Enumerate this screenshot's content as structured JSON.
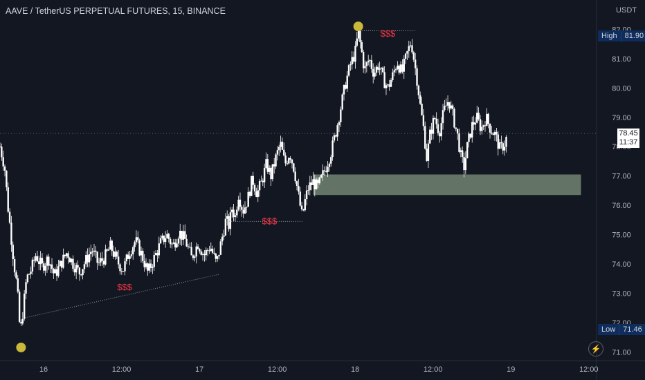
{
  "header": {
    "title": "AAVE / TetherUS PERPETUAL FUTURES, 15, BINANCE",
    "currency": "USDT"
  },
  "price_axis": {
    "high_label": "High",
    "high_value": "81.90",
    "low_label": "Low",
    "low_value": "71.46",
    "current_price": "78.45",
    "countdown": "11:37"
  },
  "annotations": {
    "liquidity_label": "$$$"
  },
  "icons": {
    "bolt": "lightning-icon"
  },
  "colors": {
    "background": "#131722",
    "candle": "#ffffff",
    "marker": "#c9b83a",
    "liquidity_text": "#f23645",
    "zone": "#8fa58c"
  },
  "chart_data": {
    "type": "candlestick",
    "interval": "15",
    "y_ticks": [
      "82.00",
      "81.00",
      "80.00",
      "79.00",
      "78.00",
      "77.00",
      "76.00",
      "75.00",
      "74.00",
      "73.00",
      "72.00",
      "71.00"
    ],
    "y_tick_values": [
      82,
      81,
      80,
      79,
      78,
      77,
      76,
      75,
      74,
      73,
      72,
      71
    ],
    "ylim": [
      70.7,
      83.0
    ],
    "x_ticks": [
      "16",
      "12:00",
      "17",
      "12:00",
      "18",
      "12:00",
      "19",
      "12:00"
    ],
    "x_tick_times": [
      16.0,
      16.5,
      17.0,
      17.5,
      18.0,
      18.5,
      19.0,
      19.5
    ],
    "xlim": [
      15.72,
      19.55
    ],
    "price_path": [
      [
        15.72,
        78.0
      ],
      [
        15.75,
        77.3
      ],
      [
        15.77,
        76.0
      ],
      [
        15.79,
        75.0
      ],
      [
        15.81,
        74.0
      ],
      [
        15.83,
        73.2
      ],
      [
        15.85,
        71.6
      ],
      [
        15.87,
        72.5
      ],
      [
        15.89,
        73.5
      ],
      [
        15.92,
        73.8
      ],
      [
        15.95,
        74.3
      ],
      [
        15.99,
        73.9
      ],
      [
        16.03,
        74.2
      ],
      [
        16.07,
        73.6
      ],
      [
        16.11,
        74.0
      ],
      [
        16.15,
        74.4
      ],
      [
        16.19,
        74.0
      ],
      [
        16.23,
        73.7
      ],
      [
        16.27,
        74.1
      ],
      [
        16.31,
        74.5
      ],
      [
        16.35,
        74.0
      ],
      [
        16.39,
        74.2
      ],
      [
        16.43,
        74.6
      ],
      [
        16.47,
        74.1
      ],
      [
        16.51,
        73.8
      ],
      [
        16.55,
        74.4
      ],
      [
        16.59,
        74.8
      ],
      [
        16.63,
        74.3
      ],
      [
        16.67,
        73.7
      ],
      [
        16.71,
        74.2
      ],
      [
        16.75,
        74.7
      ],
      [
        16.79,
        75.0
      ],
      [
        16.83,
        74.6
      ],
      [
        16.87,
        75.1
      ],
      [
        16.91,
        74.8
      ],
      [
        16.95,
        74.2
      ],
      [
        16.99,
        74.7
      ],
      [
        17.03,
        74.3
      ],
      [
        17.07,
        74.6
      ],
      [
        17.11,
        74.0
      ],
      [
        17.15,
        75.0
      ],
      [
        17.17,
        75.5
      ],
      [
        17.19,
        75.3
      ],
      [
        17.21,
        75.9
      ],
      [
        17.23,
        75.6
      ],
      [
        17.25,
        76.4
      ],
      [
        17.28,
        75.8
      ],
      [
        17.31,
        76.2
      ],
      [
        17.34,
        76.9
      ],
      [
        17.37,
        76.4
      ],
      [
        17.4,
        76.8
      ],
      [
        17.43,
        77.4
      ],
      [
        17.46,
        77.0
      ],
      [
        17.49,
        77.6
      ],
      [
        17.52,
        78.1
      ],
      [
        17.55,
        77.4
      ],
      [
        17.58,
        77.8
      ],
      [
        17.61,
        77.2
      ],
      [
        17.64,
        76.2
      ],
      [
        17.66,
        75.6
      ],
      [
        17.68,
        76.2
      ],
      [
        17.7,
        76.6
      ],
      [
        17.73,
        76.8
      ],
      [
        17.76,
        76.6
      ],
      [
        17.79,
        77.0
      ],
      [
        17.82,
        77.4
      ],
      [
        17.85,
        77.9
      ],
      [
        17.88,
        78.6
      ],
      [
        17.91,
        79.4
      ],
      [
        17.94,
        80.2
      ],
      [
        17.97,
        80.8
      ],
      [
        18.0,
        81.2
      ],
      [
        18.02,
        81.9
      ],
      [
        18.04,
        81.3
      ],
      [
        18.06,
        80.6
      ],
      [
        18.09,
        81.0
      ],
      [
        18.12,
        80.5
      ],
      [
        18.15,
        80.8
      ],
      [
        18.18,
        80.3
      ],
      [
        18.21,
        80.0
      ],
      [
        18.24,
        80.4
      ],
      [
        18.27,
        80.9
      ],
      [
        18.3,
        80.5
      ],
      [
        18.33,
        81.1
      ],
      [
        18.36,
        81.6
      ],
      [
        18.38,
        80.9
      ],
      [
        18.4,
        80.2
      ],
      [
        18.42,
        79.3
      ],
      [
        18.44,
        78.6
      ],
      [
        18.46,
        77.6
      ],
      [
        18.48,
        78.4
      ],
      [
        18.51,
        79.0
      ],
      [
        18.54,
        78.5
      ],
      [
        18.57,
        79.2
      ],
      [
        18.6,
        79.6
      ],
      [
        18.63,
        79.0
      ],
      [
        18.66,
        78.3
      ],
      [
        18.68,
        77.6
      ],
      [
        18.7,
        77.3
      ],
      [
        18.72,
        78.0
      ],
      [
        18.75,
        78.7
      ],
      [
        18.78,
        79.0
      ],
      [
        18.81,
        78.6
      ],
      [
        18.84,
        79.0
      ],
      [
        18.87,
        78.6
      ],
      [
        18.9,
        78.4
      ],
      [
        18.93,
        77.9
      ],
      [
        18.96,
        78.1
      ],
      [
        18.98,
        78.45
      ]
    ]
  }
}
